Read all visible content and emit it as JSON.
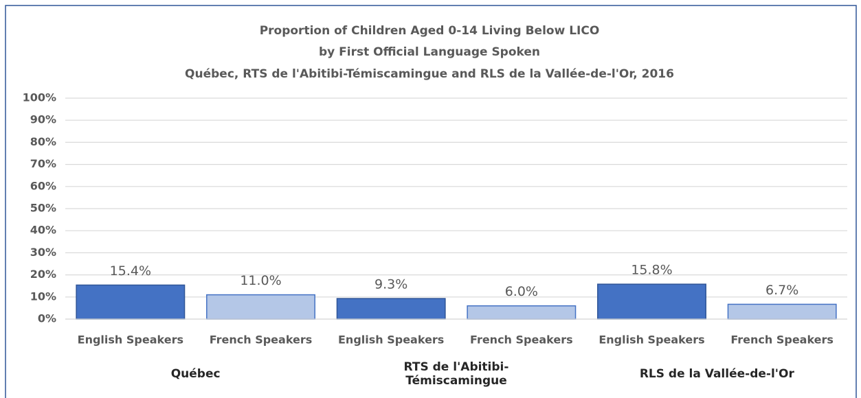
{
  "chart_data": {
    "type": "bar",
    "title": [
      "Proportion of Children Aged 0-14 Living Below LICO",
      "by First Official Language Spoken",
      "Québec, RTS de l'Abitibi-Témiscamingue and RLS de la Vallée-de-l'Or, 2016"
    ],
    "groups": [
      {
        "name": "Québec",
        "categories": [
          "English Speakers",
          "French Speakers"
        ],
        "values": [
          15.4,
          11.0
        ],
        "value_labels": [
          "15.4%",
          "11.0%"
        ]
      },
      {
        "name": "RTS de l'Abitibi-Témiscamingue",
        "categories": [
          "English Speakers",
          "French Speakers"
        ],
        "values": [
          9.3,
          6.0
        ],
        "value_labels": [
          "9.3%",
          "6.0%"
        ]
      },
      {
        "name": "RLS de la Vallée-de-l'Or",
        "categories": [
          "English Speakers",
          "French Speakers"
        ],
        "values": [
          15.8,
          6.7
        ],
        "value_labels": [
          "15.8%",
          "6.7%"
        ]
      }
    ],
    "colors": [
      "#4472c4",
      "#b4c7e7"
    ],
    "ylim": [
      0,
      100
    ],
    "yticks": [
      {
        "value": 0,
        "label": "0%"
      },
      {
        "value": 10,
        "label": "10%"
      },
      {
        "value": 20,
        "label": "20%"
      },
      {
        "value": 30,
        "label": "30%"
      },
      {
        "value": 40,
        "label": "40%"
      },
      {
        "value": 50,
        "label": "50%"
      },
      {
        "value": 60,
        "label": "60%"
      },
      {
        "value": 70,
        "label": "70%"
      },
      {
        "value": 80,
        "label": "80%"
      },
      {
        "value": 90,
        "label": "90%"
      },
      {
        "value": 100,
        "label": "100%"
      }
    ],
    "grid": true
  }
}
